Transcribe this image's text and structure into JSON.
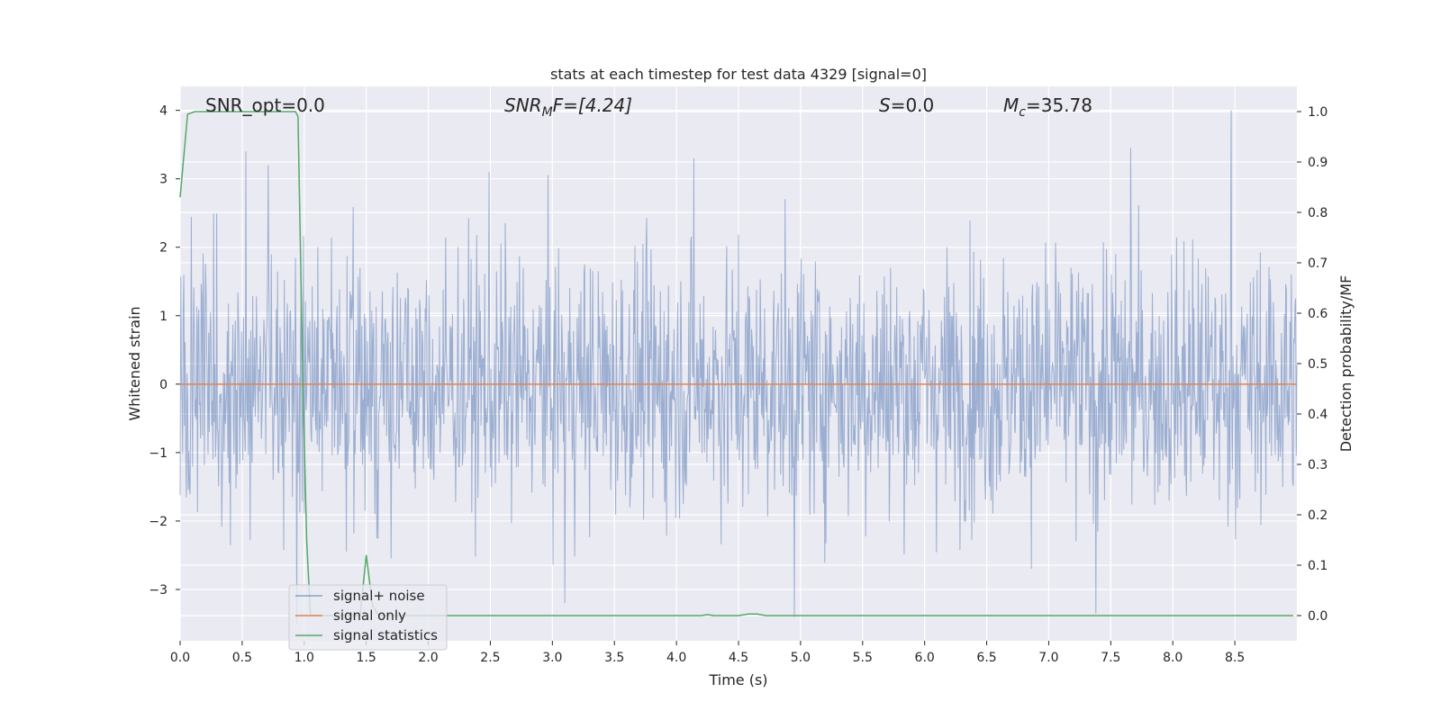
{
  "chart_data": {
    "type": "line",
    "title": "stats at each timestep for test data 4329 [signal=0]",
    "xlabel": "Time (s)",
    "ylabel_left": "Whitened strain",
    "ylabel_right": "Detection probability/MF",
    "xlim": [
      0,
      9.0
    ],
    "ylim_left": [
      -3.75,
      4.35
    ],
    "ylim_right": [
      -0.05,
      1.05
    ],
    "x_ticks": [
      0.0,
      0.5,
      1.0,
      1.5,
      2.0,
      2.5,
      3.0,
      3.5,
      4.0,
      4.5,
      5.0,
      5.5,
      6.0,
      6.5,
      7.0,
      7.5,
      8.0,
      8.5
    ],
    "x_tick_labels": [
      "0.0",
      "0.5",
      "1.0",
      "1.5",
      "2.0",
      "2.5",
      "3.0",
      "3.5",
      "4.0",
      "4.5",
      "5.0",
      "5.5",
      "6.0",
      "6.5",
      "7.0",
      "7.5",
      "8.0",
      "8.5"
    ],
    "y_ticks_left": [
      -3,
      -2,
      -1,
      0,
      1,
      2,
      3,
      4
    ],
    "y_tick_labels_left": [
      "−3",
      "−2",
      "−1",
      "0",
      "1",
      "2",
      "3",
      "4"
    ],
    "y_ticks_right": [
      0.0,
      0.1,
      0.2,
      0.3,
      0.4,
      0.5,
      0.6,
      0.7,
      0.8,
      0.9,
      1.0
    ],
    "y_tick_labels_right": [
      "0.0",
      "0.1",
      "0.2",
      "0.3",
      "0.4",
      "0.5",
      "0.6",
      "0.7",
      "0.8",
      "0.9",
      "1.0"
    ],
    "grid": true,
    "legend_position": "lower-left",
    "annotations": {
      "snr_opt": "SNR_opt=0.0",
      "snr_mf_sym": "SNR",
      "snr_mf_sub": "M",
      "snr_mf_rest": "F=[4.24]",
      "s_sym": "S",
      "s_rest": "=0.0",
      "mc_sym": "M",
      "mc_sub": "c",
      "mc_rest": "=35.78"
    },
    "series": [
      {
        "name": "signal+ noise",
        "axis": "left",
        "color": "#4c72b0",
        "style": "dense noise, amplitude mostly within ±2.5, peaks to about 4.0 and -3.4",
        "approx_peaks": [
          {
            "x": 0.53,
            "y": 3.4
          },
          {
            "x": 0.71,
            "y": 3.2
          },
          {
            "x": 2.49,
            "y": 3.1
          },
          {
            "x": 4.14,
            "y": 3.3
          },
          {
            "x": 7.66,
            "y": 3.45
          },
          {
            "x": 8.47,
            "y": 4.0
          },
          {
            "x": 0.94,
            "y": -3.5
          },
          {
            "x": 3.1,
            "y": -3.2
          },
          {
            "x": 4.95,
            "y": -3.4
          },
          {
            "x": 7.38,
            "y": -3.35
          }
        ]
      },
      {
        "name": "signal only",
        "axis": "left",
        "color": "#dd8452",
        "x": [
          0.0,
          9.0
        ],
        "y": [
          0.0,
          0.0
        ]
      },
      {
        "name": "signal statistics",
        "axis": "right",
        "color": "#55a868",
        "x": [
          0.0,
          0.06,
          0.12,
          0.2,
          0.5,
          0.85,
          0.93,
          0.95,
          0.99,
          1.02,
          1.05,
          1.3,
          1.35,
          1.45,
          1.5,
          1.55,
          1.6,
          1.65,
          1.7,
          2.0,
          3.0,
          4.0,
          4.2,
          4.25,
          4.3,
          4.5,
          4.58,
          4.65,
          4.72,
          5.0,
          6.0,
          7.0,
          8.0,
          8.97
        ],
        "y": [
          0.83,
          0.995,
          1.0,
          1.0,
          1.0,
          1.0,
          1.0,
          0.99,
          0.45,
          0.15,
          0.0,
          0.0,
          0.0,
          0.0,
          0.12,
          0.02,
          0.0,
          0.0,
          0.0,
          0.0,
          0.0,
          0.0,
          0.0,
          0.002,
          0.0,
          0.0,
          0.003,
          0.003,
          0.0,
          0.0,
          0.0,
          0.0,
          0.0,
          0.0
        ]
      }
    ]
  }
}
